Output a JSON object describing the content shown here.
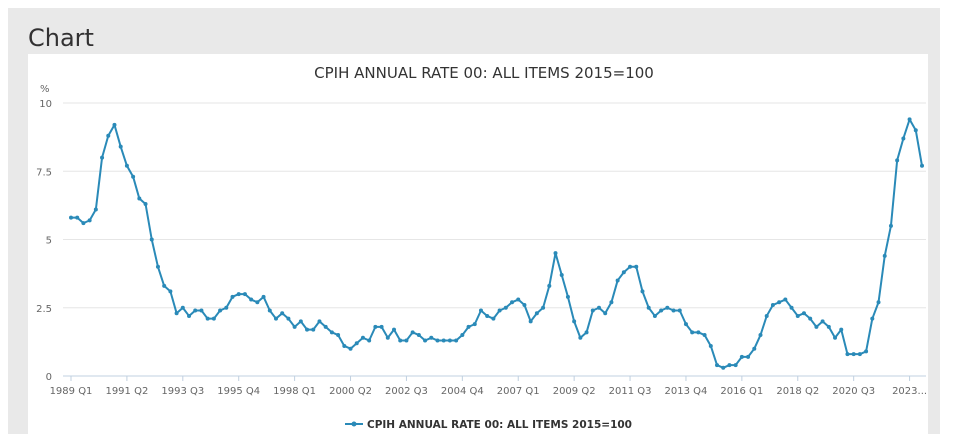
{
  "panel": {
    "title": "Chart"
  },
  "colors": {
    "series": "#2a8ab8",
    "grid": "#e6e6e6",
    "header_bg": "#e9e9e9"
  },
  "chart_data": {
    "type": "line",
    "title": "CPIH ANNUAL RATE 00: ALL ITEMS 2015=100",
    "ylabel": "%",
    "ylim": [
      0,
      10
    ],
    "y_ticks": [
      0,
      2.5,
      5,
      7.5,
      10
    ],
    "y_tick_labels": [
      "0",
      "2.5",
      "5",
      "7.5",
      "10"
    ],
    "x_tick_labels": [
      "1989 Q1",
      "1991 Q2",
      "1993 Q3",
      "1995 Q4",
      "1998 Q1",
      "2000 Q2",
      "2002 Q3",
      "2004 Q4",
      "2007 Q1",
      "2009 Q2",
      "2011 Q3",
      "2013 Q4",
      "2016 Q1",
      "2018 Q2",
      "2020 Q3",
      "2023..."
    ],
    "x_tick_every": 9,
    "legend_position": "bottom-center",
    "grid": true,
    "x_first": "1989 Q1",
    "x_last": "2023 Q2",
    "series": [
      {
        "name": "CPIH ANNUAL RATE 00: ALL ITEMS 2015=100",
        "values": [
          5.8,
          5.8,
          5.6,
          5.7,
          6.1,
          8.0,
          8.8,
          9.2,
          8.4,
          7.7,
          7.3,
          6.5,
          6.3,
          5.0,
          4.0,
          3.3,
          3.1,
          2.3,
          2.5,
          2.2,
          2.4,
          2.4,
          2.1,
          2.1,
          2.4,
          2.5,
          2.9,
          3.0,
          3.0,
          2.8,
          2.7,
          2.9,
          2.4,
          2.1,
          2.3,
          2.1,
          1.8,
          2.0,
          1.7,
          1.7,
          2.0,
          1.8,
          1.6,
          1.5,
          1.1,
          1.0,
          1.2,
          1.4,
          1.3,
          1.8,
          1.8,
          1.4,
          1.7,
          1.3,
          1.3,
          1.6,
          1.5,
          1.3,
          1.4,
          1.3,
          1.3,
          1.3,
          1.3,
          1.5,
          1.8,
          1.9,
          2.4,
          2.2,
          2.1,
          2.4,
          2.5,
          2.7,
          2.8,
          2.6,
          2.0,
          2.3,
          2.5,
          3.3,
          4.5,
          3.7,
          2.9,
          2.0,
          1.4,
          1.6,
          2.4,
          2.5,
          2.3,
          2.7,
          3.5,
          3.8,
          4.0,
          4.0,
          3.1,
          2.5,
          2.2,
          2.4,
          2.5,
          2.4,
          2.4,
          1.9,
          1.6,
          1.6,
          1.5,
          1.1,
          0.4,
          0.3,
          0.4,
          0.4,
          0.7,
          0.7,
          1.0,
          1.5,
          2.2,
          2.6,
          2.7,
          2.8,
          2.5,
          2.2,
          2.3,
          2.1,
          1.8,
          2.0,
          1.8,
          1.4,
          1.7,
          0.8,
          0.8,
          0.8,
          0.9,
          2.1,
          2.7,
          4.4,
          5.5,
          7.9,
          8.7,
          9.4,
          9.0,
          7.7
        ]
      }
    ]
  }
}
